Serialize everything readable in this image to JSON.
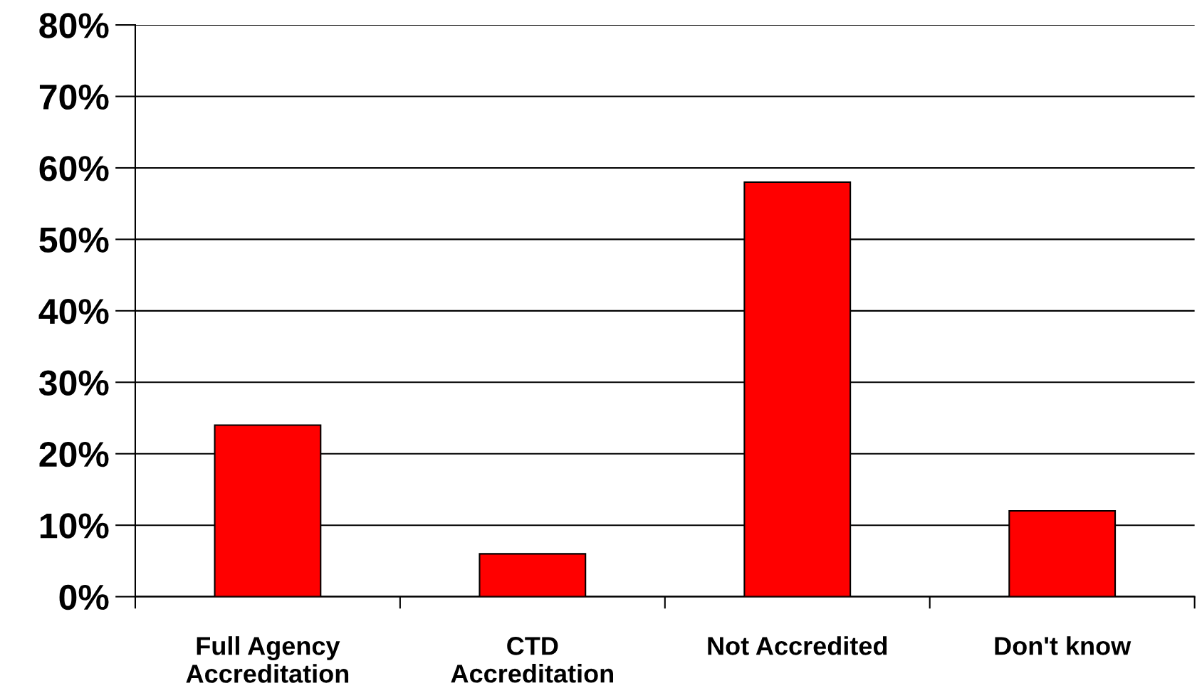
{
  "chart_data": {
    "type": "bar",
    "categories": [
      "Full Agency\nAccreditation",
      "CTD\nAccreditation",
      "Not Accredited",
      "Don't know"
    ],
    "values": [
      24,
      6,
      58,
      12
    ],
    "color": "#ff0000",
    "ylim": [
      0,
      80
    ],
    "yticks": [
      {
        "value": 0,
        "label": "0%"
      },
      {
        "value": 10,
        "label": "10%"
      },
      {
        "value": 20,
        "label": "20%"
      },
      {
        "value": 30,
        "label": "30%"
      },
      {
        "value": 40,
        "label": "40%"
      },
      {
        "value": 50,
        "label": "50%"
      },
      {
        "value": 60,
        "label": "60%"
      },
      {
        "value": 70,
        "label": "70%"
      },
      {
        "value": 80,
        "label": "80%"
      }
    ],
    "grid": "y",
    "legend": false
  }
}
